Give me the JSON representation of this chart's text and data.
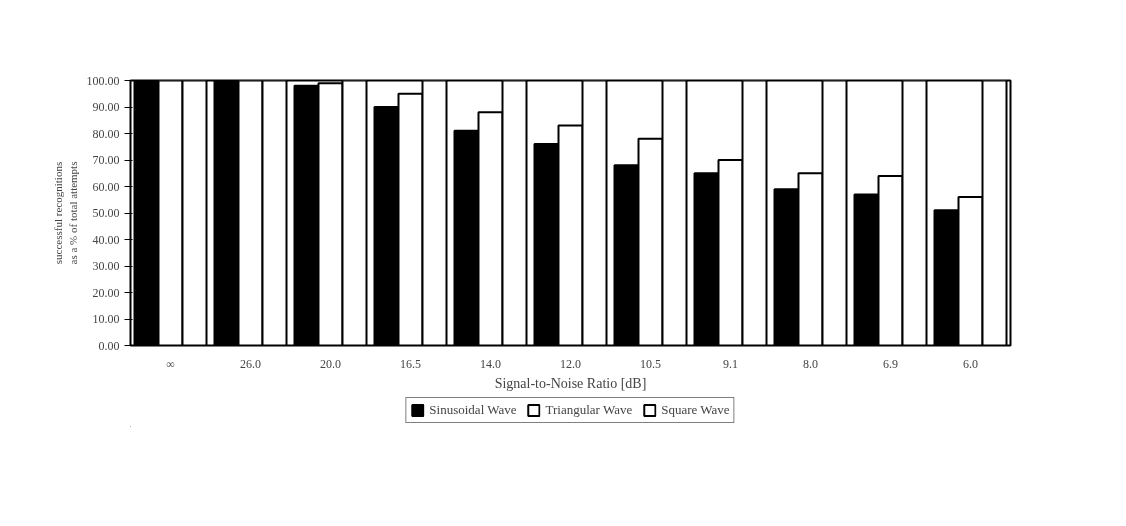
{
  "chart_data": {
    "type": "bar",
    "xlabel": "Signal-to-Noise Ratio [dB]",
    "ylabel": "successful recognitions\nas a % of total attempts",
    "categories": [
      "∞",
      "26.0",
      "20.0",
      "16.5",
      "14.0",
      "12.0",
      "10.5",
      "9.1",
      "8.0",
      "6.9",
      "6.0"
    ],
    "series": [
      {
        "name": "Sinusoidal Wave",
        "color": "#000000",
        "values": [
          100,
          100,
          98,
          90,
          81,
          76,
          68,
          65,
          59,
          57,
          51
        ]
      },
      {
        "name": "Triangular Wave",
        "color": "#ffffff",
        "values": [
          100,
          100,
          99,
          95,
          88,
          83,
          78,
          70,
          65,
          64,
          56
        ]
      },
      {
        "name": "Square Wave",
        "color": "#ffffff",
        "values": [
          100,
          100,
          100,
          100,
          100,
          100,
          100,
          100,
          100,
          100,
          100
        ]
      }
    ],
    "ylim": [
      0,
      100
    ],
    "yticks": [
      {
        "value": 0,
        "label": "0.00"
      },
      {
        "value": 10,
        "label": "10.00"
      },
      {
        "value": 20,
        "label": "20.00"
      },
      {
        "value": 30,
        "label": "30.00"
      },
      {
        "value": 40,
        "label": "40.00"
      },
      {
        "value": 50,
        "label": "50.00"
      },
      {
        "value": 60,
        "label": "60.00"
      },
      {
        "value": 70,
        "label": "70.00"
      },
      {
        "value": 80,
        "label": "80.00"
      },
      {
        "value": 90,
        "label": "90.00"
      },
      {
        "value": 100,
        "label": "100.00"
      }
    ],
    "grid": false,
    "legend": "bottom"
  }
}
